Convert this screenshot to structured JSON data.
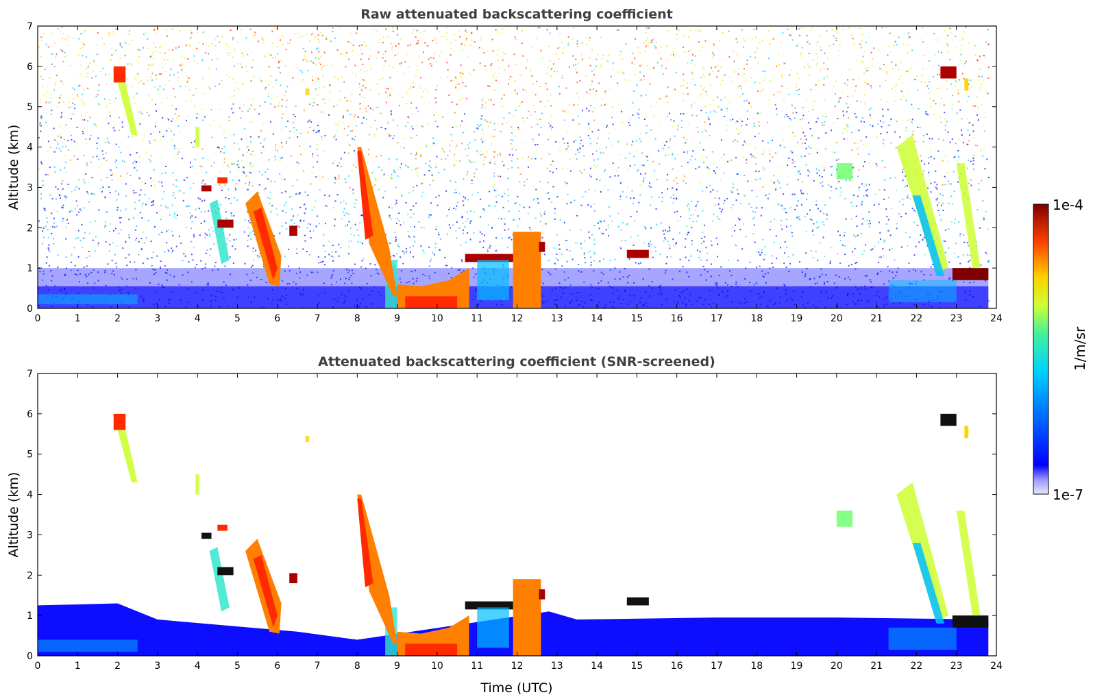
{
  "chart_data": [
    {
      "type": "heatmap",
      "title": "Raw attenuated backscattering coefficient",
      "xlabel": "",
      "ylabel": "Altitude (km)",
      "xlim": [
        0,
        24
      ],
      "ylim": [
        0,
        7
      ],
      "xticks": [
        0,
        1,
        2,
        3,
        4,
        5,
        6,
        7,
        8,
        9,
        10,
        11,
        12,
        13,
        14,
        15,
        16,
        17,
        18,
        19,
        20,
        21,
        22,
        23,
        24
      ],
      "yticks": [
        0,
        1,
        2,
        3,
        4,
        5,
        6,
        7
      ],
      "screened": false,
      "features": [
        {
          "kind": "boundary_layer",
          "x0": 0,
          "x1": 24,
          "top_km": 0.5
        },
        {
          "kind": "cloud_deep",
          "x0": 9.0,
          "x1": 10.8,
          "y0": 0.0,
          "y1": 0.7
        },
        {
          "kind": "cloud_layer",
          "x0": 10.7,
          "x1": 12.5,
          "y0": 1.15,
          "y1": 1.35
        },
        {
          "kind": "cloud_layer",
          "x0": 14.7,
          "x1": 15.3,
          "y0": 1.25,
          "y1": 1.45
        },
        {
          "kind": "cloud_layer",
          "x0": 22.9,
          "x1": 23.8,
          "y0": 0.7,
          "y1": 1.0
        },
        {
          "kind": "cloud_high",
          "x0": 1.9,
          "x1": 2.2,
          "y0": 5.6,
          "y1": 6.0
        },
        {
          "kind": "cloud_high",
          "x0": 22.6,
          "x1": 23.0,
          "y0": 5.7,
          "y1": 6.0
        },
        {
          "kind": "virga",
          "x0": 5.2,
          "x1": 6.1,
          "y0": 0.6,
          "y1": 2.6
        },
        {
          "kind": "virga",
          "x0": 8.0,
          "x1": 9.0,
          "y0": 0.3,
          "y1": 4.0
        },
        {
          "kind": "virga",
          "x0": 21.5,
          "x1": 22.8,
          "y0": 0.8,
          "y1": 4.0
        }
      ]
    },
    {
      "type": "heatmap",
      "title": "Attenuated backscattering coefficient (SNR-screened)",
      "xlabel": "Time (UTC)",
      "ylabel": "Altitude (km)",
      "xlim": [
        0,
        24
      ],
      "ylim": [
        0,
        7
      ],
      "xticks": [
        0,
        1,
        2,
        3,
        4,
        5,
        6,
        7,
        8,
        9,
        10,
        11,
        12,
        13,
        14,
        15,
        16,
        17,
        18,
        19,
        20,
        21,
        22,
        23,
        24
      ],
      "yticks": [
        0,
        1,
        2,
        3,
        4,
        5,
        6,
        7
      ],
      "screened": true
    }
  ],
  "colorbar": {
    "label": "1/m/sr",
    "max_label": "1e-4",
    "min_label": "1e-7",
    "scale": "log",
    "colormap": "jet",
    "colors": [
      "#e6e6ff",
      "#0000ff",
      "#00bfff",
      "#33e6cc",
      "#ccff33",
      "#ffcc00",
      "#ff4000",
      "#800000"
    ]
  }
}
